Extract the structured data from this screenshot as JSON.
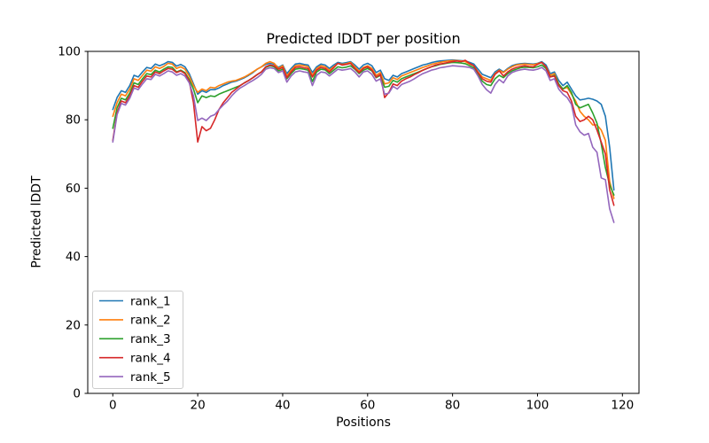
{
  "figure": {
    "background": "#ffffff",
    "text_color": "#000000",
    "axis_color": "#000000"
  },
  "chart_data": {
    "type": "line",
    "title": "Predicted lDDT per position",
    "xlabel": "Positions",
    "ylabel": "Predicted lDDT",
    "xlim": [
      -5.9,
      123.9
    ],
    "ylim": [
      0,
      100
    ],
    "x_ticks": [
      0,
      20,
      40,
      60,
      80,
      100,
      120
    ],
    "y_ticks": [
      0,
      20,
      40,
      60,
      80,
      100
    ],
    "grid": false,
    "legend": {
      "position": "lower-left",
      "border_color": "#cccccc",
      "background": "#ffffff"
    },
    "positions": [
      0,
      1,
      2,
      3,
      4,
      5,
      6,
      7,
      8,
      9,
      10,
      11,
      12,
      13,
      14,
      15,
      16,
      17,
      18,
      19,
      20,
      21,
      22,
      23,
      24,
      25,
      26,
      27,
      28,
      29,
      30,
      31,
      32,
      33,
      34,
      35,
      36,
      37,
      38,
      39,
      40,
      41,
      42,
      43,
      44,
      45,
      46,
      47,
      48,
      49,
      50,
      51,
      52,
      53,
      54,
      55,
      56,
      57,
      58,
      59,
      60,
      61,
      62,
      63,
      64,
      65,
      66,
      67,
      68,
      69,
      70,
      71,
      72,
      73,
      74,
      75,
      76,
      77,
      78,
      79,
      80,
      81,
      82,
      83,
      84,
      85,
      86,
      87,
      88,
      89,
      90,
      91,
      92,
      93,
      94,
      95,
      96,
      97,
      98,
      99,
      100,
      101,
      102,
      103,
      104,
      105,
      106,
      107,
      108,
      109,
      110,
      111,
      112,
      113,
      114,
      115,
      116,
      117,
      118
    ],
    "series": [
      {
        "name": "rank_1",
        "color": "#1f77b4",
        "values": [
          83,
          86.5,
          88.5,
          88,
          90,
          93,
          92.5,
          94,
          95.3,
          95,
          96.3,
          95.8,
          96.3,
          97,
          96.8,
          95.7,
          96.2,
          95.5,
          93.5,
          90.5,
          87.5,
          88.5,
          88,
          88.8,
          88.8,
          89.3,
          90,
          90.5,
          91,
          91.3,
          91.8,
          92.3,
          93,
          93.8,
          94.8,
          95.5,
          96.2,
          96.5,
          96.3,
          95.3,
          96,
          93.5,
          95,
          96.3,
          96.5,
          96.2,
          96,
          93.8,
          95.5,
          96.3,
          96,
          95,
          96,
          96.8,
          96.5,
          96.7,
          97,
          96,
          94.8,
          96,
          96.5,
          95.8,
          93.8,
          94.5,
          92,
          91.5,
          93,
          92.5,
          93.5,
          94,
          94.5,
          95,
          95.5,
          96,
          96.3,
          96.7,
          97,
          97.2,
          97.3,
          97.4,
          97.5,
          97.4,
          97.3,
          97.2,
          96.8,
          96.3,
          94.8,
          93.3,
          92.8,
          92.3,
          94,
          94.8,
          94,
          95,
          95.8,
          96.2,
          96.4,
          96.5,
          96.4,
          96.3,
          96.5,
          97,
          96,
          93.5,
          94,
          91.5,
          90,
          91,
          89,
          87,
          85.8,
          86,
          86.3,
          86,
          85.5,
          84.5,
          81,
          72,
          59.5
        ]
      },
      {
        "name": "rank_2",
        "color": "#ff7f0e",
        "values": [
          81,
          85,
          87.5,
          87,
          89,
          92,
          91.5,
          93,
          94.5,
          94.2,
          95.5,
          95,
          95.6,
          96.5,
          96.3,
          95,
          95.5,
          94.8,
          92.8,
          90,
          88,
          89,
          88.5,
          89.5,
          89.3,
          90,
          90.5,
          91,
          91.3,
          91.5,
          92,
          92.5,
          93.2,
          94,
          94.8,
          95.5,
          96.5,
          97,
          96.5,
          95,
          95.8,
          92.8,
          94.5,
          95.8,
          96,
          95.8,
          95.5,
          93,
          95,
          95.8,
          95.5,
          94.5,
          95.5,
          96.5,
          96.2,
          96.4,
          96.8,
          95.5,
          94.2,
          95.3,
          95.8,
          95,
          93,
          93.8,
          90.5,
          90.8,
          92.3,
          91.8,
          92.8,
          93.3,
          93.8,
          94.3,
          94.8,
          95.3,
          95.7,
          96.2,
          96.5,
          96.8,
          97,
          97.2,
          97.3,
          97.3,
          97.2,
          97,
          96.3,
          95.8,
          94,
          92.5,
          92,
          91.5,
          93.5,
          94.5,
          93.8,
          94.8,
          95.5,
          96,
          96.2,
          96.3,
          96.2,
          96.1,
          96.4,
          96.8,
          95.5,
          93,
          93.5,
          90.5,
          89,
          89.5,
          87.5,
          85.5,
          82.5,
          81,
          80,
          78.5,
          78.5,
          77,
          74,
          62,
          57
        ]
      },
      {
        "name": "rank_3",
        "color": "#2ca02c",
        "values": [
          77.5,
          83.5,
          86.3,
          85.8,
          87.8,
          90.8,
          90.3,
          92,
          93.5,
          93.2,
          94.5,
          94,
          94.8,
          95.5,
          95.3,
          94,
          94.5,
          93.8,
          91.8,
          89,
          85,
          87,
          86.5,
          87,
          86.8,
          87.5,
          88,
          88.5,
          89,
          89.5,
          90,
          90.8,
          91.5,
          92.3,
          93.2,
          94,
          95.3,
          95.8,
          95.5,
          94.3,
          94.8,
          92,
          93.5,
          94.8,
          95,
          94.8,
          94.5,
          91.2,
          94,
          94.8,
          94.6,
          93.5,
          94.5,
          95.5,
          95.2,
          95.4,
          95.8,
          94.8,
          93.5,
          94.5,
          95,
          94.3,
          92.3,
          93,
          89.5,
          89.8,
          91.5,
          91,
          92,
          92.5,
          93,
          93.5,
          94,
          94.5,
          95,
          95.5,
          95.8,
          96.2,
          96.4,
          96.6,
          96.8,
          96.7,
          96.6,
          96.4,
          95.8,
          95.2,
          93.2,
          91.3,
          90.3,
          90,
          92,
          93,
          92.3,
          93.5,
          94.3,
          94.8,
          95.2,
          95.4,
          95.3,
          95.2,
          95.5,
          96,
          95,
          92.5,
          93,
          90.5,
          89,
          90,
          88,
          84.5,
          83.5,
          84,
          84.5,
          82,
          79,
          73,
          66,
          61,
          58
        ]
      },
      {
        "name": "rank_4",
        "color": "#d62728",
        "values": [
          74,
          82,
          85.5,
          85,
          87,
          90,
          89.5,
          91.3,
          92.8,
          92.5,
          94,
          93.5,
          94.3,
          95,
          94.8,
          93.8,
          94.3,
          93.5,
          91.3,
          85,
          73.5,
          78,
          76.8,
          77.5,
          80,
          83,
          85,
          86.5,
          88,
          89,
          90,
          90.8,
          91.5,
          92.3,
          93.2,
          94,
          95.5,
          96,
          95.8,
          94.8,
          95.3,
          92.3,
          94,
          95.3,
          95.5,
          95.2,
          95,
          92.5,
          94.5,
          95.3,
          95,
          94,
          95.2,
          96.5,
          96,
          96.2,
          96.5,
          95,
          93.8,
          95,
          95.5,
          94.5,
          92.5,
          93.3,
          86.5,
          88,
          90.5,
          90,
          91.3,
          92,
          92.5,
          93.2,
          93.8,
          94.5,
          95,
          95.5,
          96,
          96.3,
          96.5,
          96.8,
          97,
          97.2,
          97,
          97.4,
          96.5,
          95.8,
          93.8,
          92,
          91.3,
          91,
          93.3,
          94.3,
          92.8,
          94,
          94.8,
          95.3,
          95.6,
          95.8,
          95.6,
          95.5,
          96.2,
          96.8,
          95.5,
          92.5,
          92.8,
          90,
          88.5,
          88,
          85.5,
          81,
          79.5,
          80,
          81,
          80,
          77,
          73.5,
          70,
          59.5,
          55
        ]
      },
      {
        "name": "rank_5",
        "color": "#9467bd",
        "values": [
          73.5,
          81.5,
          84.8,
          84.3,
          86.3,
          89.3,
          88.8,
          90.5,
          92,
          91.8,
          93.3,
          92.8,
          93.5,
          94.3,
          94,
          93,
          93.5,
          92.8,
          90.8,
          87,
          79.8,
          80.5,
          79.8,
          81,
          81.5,
          83,
          84.3,
          85.5,
          87,
          88.3,
          89.3,
          90,
          90.8,
          91.5,
          92.3,
          93.3,
          94.8,
          95.2,
          95,
          93.8,
          94.3,
          91,
          92.8,
          94,
          94.3,
          94,
          93.8,
          90,
          93,
          94,
          93.8,
          92.8,
          93.8,
          94.8,
          94.5,
          94.7,
          95,
          94,
          92.5,
          94,
          94.3,
          93.3,
          91.3,
          92,
          87.5,
          87.8,
          89.8,
          89,
          90.3,
          90.8,
          91.3,
          92,
          92.8,
          93.5,
          94,
          94.5,
          94.8,
          95.2,
          95.4,
          95.6,
          95.8,
          95.7,
          95.6,
          95.5,
          95.3,
          94.8,
          92.8,
          90.3,
          88.8,
          87.8,
          90.3,
          91.8,
          90.8,
          92.8,
          93.8,
          94.3,
          94.6,
          94.8,
          94.6,
          94.5,
          94.8,
          95.3,
          94.3,
          91.5,
          92,
          89,
          87.5,
          86.5,
          84.5,
          78.5,
          76.5,
          75.5,
          76,
          72,
          70.5,
          63,
          62.5,
          54,
          50
        ]
      }
    ]
  }
}
